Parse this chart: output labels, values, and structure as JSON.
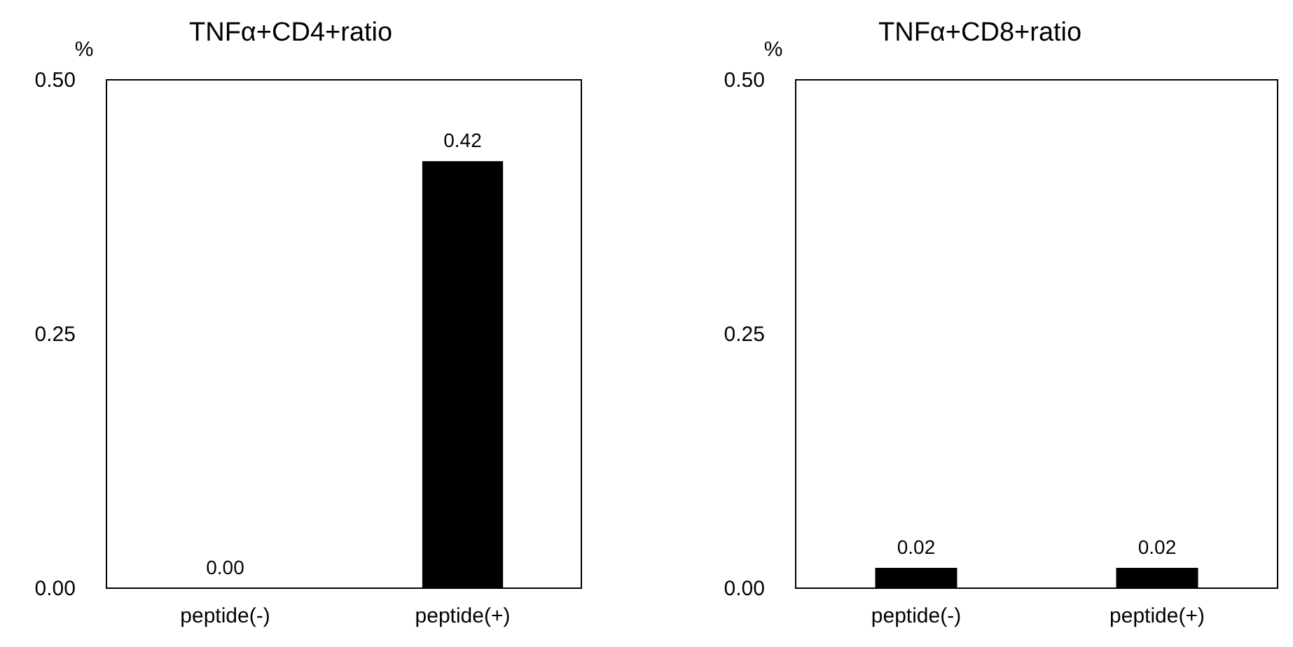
{
  "chart_data": [
    {
      "type": "bar",
      "title": "TNFα+CD4+ratio",
      "ylabel": "%",
      "categories": [
        "peptide(-)",
        "peptide(+)"
      ],
      "values": [
        0.0,
        0.42
      ],
      "value_labels": [
        "0.00",
        "0.42"
      ],
      "color": "#000000",
      "ylim": [
        0,
        0.5
      ],
      "yticks": [
        {
          "value": 0,
          "label": "0.00"
        },
        {
          "value": 0.25,
          "label": "0.25"
        },
        {
          "value": 0.5,
          "label": "0.50"
        }
      ],
      "grid": false
    },
    {
      "type": "bar",
      "title": "TNFα+CD8+ratio",
      "ylabel": "%",
      "categories": [
        "peptide(-)",
        "peptide(+)"
      ],
      "values": [
        0.02,
        0.02
      ],
      "value_labels": [
        "0.02",
        "0.02"
      ],
      "color": "#000000",
      "ylim": [
        0,
        0.5
      ],
      "yticks": [
        {
          "value": 0,
          "label": "0.00"
        },
        {
          "value": 0.25,
          "label": "0.25"
        },
        {
          "value": 0.5,
          "label": "0.50"
        }
      ],
      "grid": false
    }
  ]
}
